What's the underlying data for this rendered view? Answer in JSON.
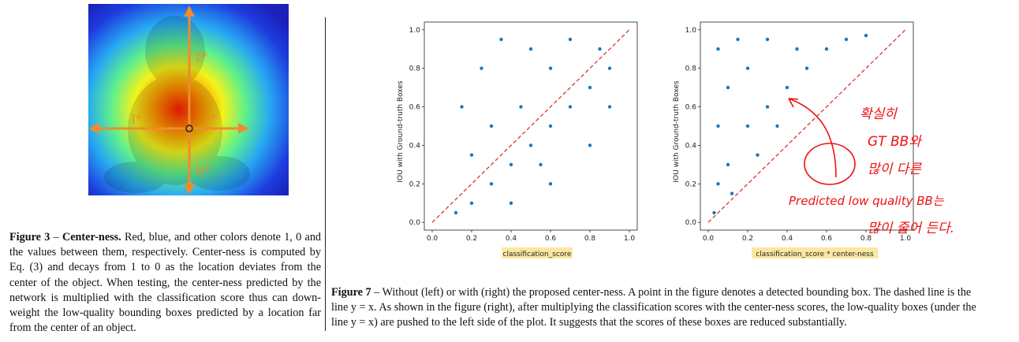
{
  "figure3": {
    "labels": {
      "top": "t*",
      "left": "l*",
      "right": "r*",
      "bottom": "b*"
    },
    "caption": {
      "label": "Figure 3",
      "sep": " – ",
      "title": "Center-ness.",
      "text": " Red, blue, and other colors denote 1, 0 and the values between them, respectively. Center-ness is computed by Eq. (3) and decays from 1 to 0 as the location deviates from the center of the object. When testing, the center-ness predicted by the network is multiplied with the classification score thus can down-weight the low-quality bounding boxes predicted by a location far from the center of an object."
    }
  },
  "chart_data": [
    {
      "type": "scatter",
      "xlabel": "classification_score",
      "ylabel": "IOU with Ground-truth Boxes",
      "xlim": [
        0,
        1.0
      ],
      "ylim": [
        0,
        1.0
      ],
      "xticks": [
        "0.0",
        "0.2",
        "0.4",
        "0.6",
        "0.8",
        "1.0"
      ],
      "yticks": [
        "0.0",
        "0.2",
        "0.4",
        "0.6",
        "0.8",
        "1.0"
      ],
      "point_color": "#1f77b4",
      "reference_line": {
        "style": "dashed",
        "color": "#d62728",
        "equation": "y = x"
      },
      "points": [
        [
          0.12,
          0.05
        ],
        [
          0.2,
          0.1
        ],
        [
          0.3,
          0.2
        ],
        [
          0.4,
          0.3
        ],
        [
          0.5,
          0.4
        ],
        [
          0.6,
          0.5
        ],
        [
          0.7,
          0.6
        ],
        [
          0.8,
          0.7
        ],
        [
          0.9,
          0.8
        ],
        [
          0.15,
          0.6
        ],
        [
          0.25,
          0.8
        ],
        [
          0.35,
          0.95
        ],
        [
          0.5,
          0.9
        ],
        [
          0.7,
          0.95
        ],
        [
          0.85,
          0.9
        ],
        [
          0.3,
          0.5
        ],
        [
          0.45,
          0.6
        ],
        [
          0.6,
          0.8
        ],
        [
          0.4,
          0.1
        ],
        [
          0.6,
          0.2
        ],
        [
          0.8,
          0.4
        ],
        [
          0.9,
          0.6
        ],
        [
          0.2,
          0.35
        ],
        [
          0.55,
          0.3
        ]
      ]
    },
    {
      "type": "scatter",
      "xlabel": "classification_score * center-ness",
      "ylabel": "IOU with Ground-truth Boxes",
      "xlim": [
        0,
        1.0
      ],
      "ylim": [
        0,
        1.0
      ],
      "xticks": [
        "0.0",
        "0.2",
        "0.4",
        "0.6",
        "0.8",
        "1.0"
      ],
      "yticks": [
        "0.0",
        "0.2",
        "0.4",
        "0.6",
        "0.8",
        "1.0"
      ],
      "point_color": "#1f77b4",
      "reference_line": {
        "style": "dashed",
        "color": "#d62728",
        "equation": "y = x"
      },
      "points": [
        [
          0.03,
          0.05
        ],
        [
          0.05,
          0.2
        ],
        [
          0.05,
          0.5
        ],
        [
          0.05,
          0.9
        ],
        [
          0.1,
          0.3
        ],
        [
          0.1,
          0.7
        ],
        [
          0.15,
          0.95
        ],
        [
          0.2,
          0.5
        ],
        [
          0.2,
          0.8
        ],
        [
          0.3,
          0.6
        ],
        [
          0.3,
          0.95
        ],
        [
          0.4,
          0.7
        ],
        [
          0.45,
          0.9
        ],
        [
          0.5,
          0.8
        ],
        [
          0.6,
          0.9
        ],
        [
          0.7,
          0.95
        ],
        [
          0.8,
          0.97
        ],
        [
          0.12,
          0.15
        ],
        [
          0.25,
          0.35
        ],
        [
          0.35,
          0.5
        ]
      ]
    }
  ],
  "annotations": {
    "line1": "확실히",
    "line2": "GT BB와",
    "line3": "많이 다른",
    "line4": "Predicted low quality BB는",
    "line5": "많이 줄어 든다."
  },
  "figure7": {
    "caption": {
      "label": "Figure 7",
      "sep": " – ",
      "text": "Without (left) or with (right) the proposed center-ness. A point in the figure denotes a detected bounding box. The dashed line is the line y = x. As shown in the figure (right), after multiplying the classification scores with the center-ness scores, the low-quality boxes (under the line y = x) are pushed to the left side of the plot. It suggests that the scores of these boxes are reduced substantially."
    }
  }
}
